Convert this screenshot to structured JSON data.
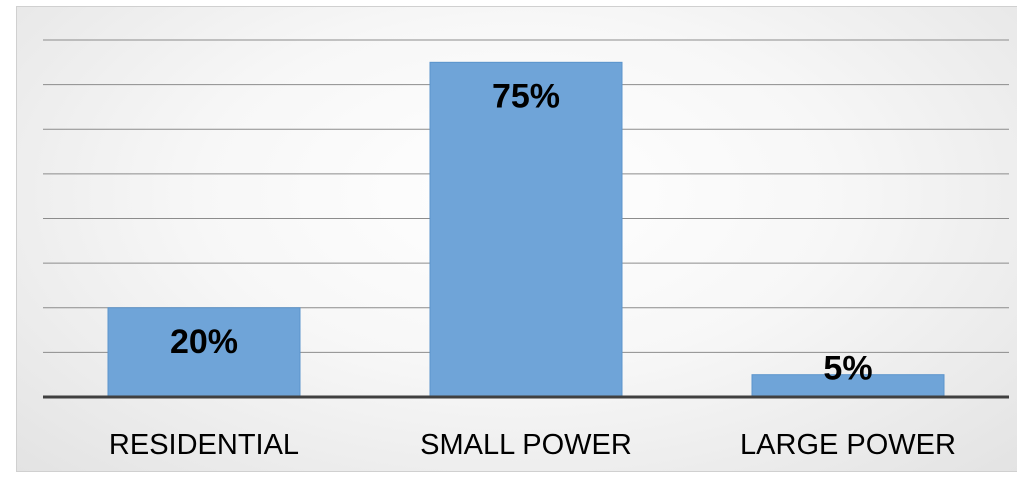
{
  "chart_data": {
    "type": "bar",
    "title": "",
    "xlabel": "",
    "ylabel": "",
    "categories": [
      "RESIDENTIAL",
      "SMALL POWER",
      "LARGE POWER"
    ],
    "values": [
      20,
      75,
      5
    ],
    "data_labels": [
      "20%",
      "75%",
      "5%"
    ],
    "ylim": [
      0,
      80
    ],
    "gridlines": [
      10,
      20,
      30,
      40,
      50,
      60,
      70,
      80
    ],
    "grid": true,
    "legend": "none",
    "bar_color": "#6fa4d8"
  }
}
